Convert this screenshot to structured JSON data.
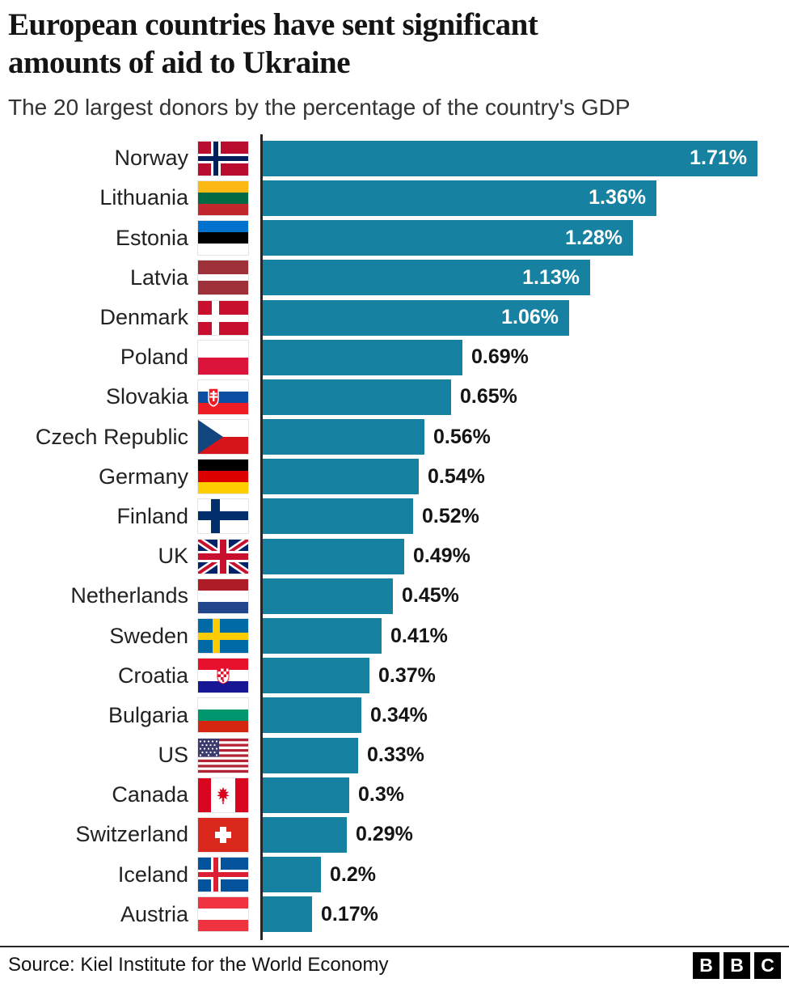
{
  "header": {
    "title": "European countries have sent significant\namounts of aid to Ukraine",
    "subtitle": "The 20 largest donors by the percentage of the country's GDP"
  },
  "chart_data": {
    "type": "bar",
    "orientation": "horizontal",
    "title": "European countries have sent significant amounts of aid to Ukraine",
    "subtitle": "The 20 largest donors by the percentage of the country's GDP",
    "xlabel": "",
    "xlim": [
      0,
      1.71
    ],
    "grid": false,
    "legend": "none",
    "bar_color": "#1781A1",
    "categories": [
      "Norway",
      "Lithuania",
      "Estonia",
      "Latvia",
      "Denmark",
      "Poland",
      "Slovakia",
      "Czech Republic",
      "Germany",
      "Finland",
      "UK",
      "Netherlands",
      "Sweden",
      "Croatia",
      "Bulgaria",
      "US",
      "Canada",
      "Switzerland",
      "Iceland",
      "Austria"
    ],
    "values": [
      1.71,
      1.36,
      1.28,
      1.13,
      1.06,
      0.69,
      0.65,
      0.56,
      0.54,
      0.52,
      0.49,
      0.45,
      0.41,
      0.37,
      0.34,
      0.33,
      0.3,
      0.29,
      0.2,
      0.17
    ],
    "value_labels": [
      "1.71%",
      "1.36%",
      "1.28%",
      "1.13%",
      "1.06%",
      "0.69%",
      "0.65%",
      "0.56%",
      "0.54%",
      "0.52%",
      "0.49%",
      "0.45%",
      "0.41%",
      "0.37%",
      "0.34%",
      "0.33%",
      "0.3%",
      "0.29%",
      "0.2%",
      "0.17%"
    ],
    "flag_icons": [
      "norway-flag-icon",
      "lithuania-flag-icon",
      "estonia-flag-icon",
      "latvia-flag-icon",
      "denmark-flag-icon",
      "poland-flag-icon",
      "slovakia-flag-icon",
      "czech-republic-flag-icon",
      "germany-flag-icon",
      "finland-flag-icon",
      "uk-flag-icon",
      "netherlands-flag-icon",
      "sweden-flag-icon",
      "croatia-flag-icon",
      "bulgaria-flag-icon",
      "us-flag-icon",
      "canada-flag-icon",
      "switzerland-flag-icon",
      "iceland-flag-icon",
      "austria-flag-icon"
    ]
  },
  "footer": {
    "source": "Source: Kiel Institute for the World Economy",
    "logo_letters": [
      "B",
      "B",
      "C"
    ]
  }
}
